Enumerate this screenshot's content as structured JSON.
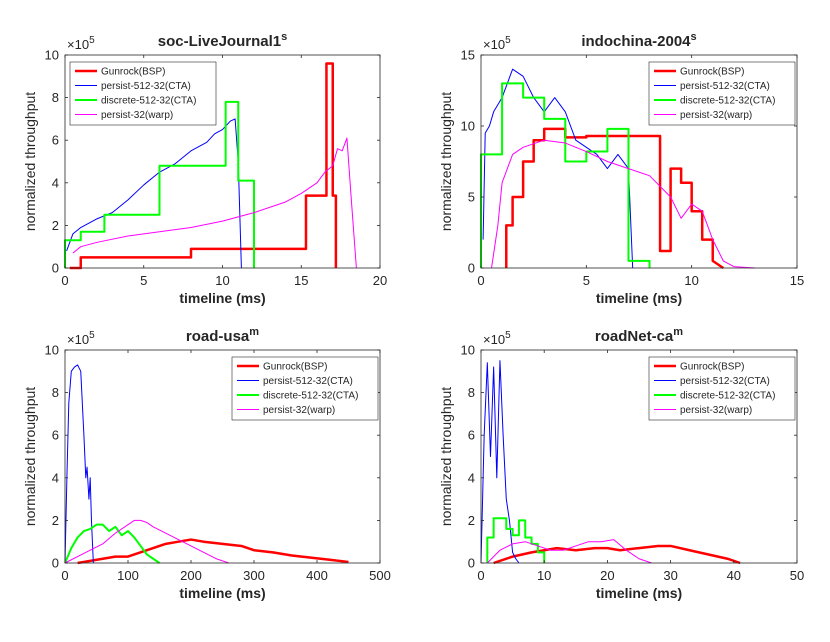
{
  "chart_data": [
    {
      "type": "line",
      "title": "soc-LiveJournal1",
      "title_superscript": "s",
      "y_multiplier": "×10",
      "y_multiplier_exponent": "5",
      "xlabel": "timeline (ms)",
      "ylabel": "normalized throughput",
      "xlim": [
        0,
        20
      ],
      "xticks": [
        0,
        5,
        10,
        15,
        20
      ],
      "ylim": [
        0,
        10
      ],
      "yticks": [
        0,
        2,
        4,
        6,
        8,
        10
      ],
      "legend": "upper left",
      "series": [
        {
          "name": "Gunrock(BSP)",
          "color": "#ff0000",
          "width": 2.5,
          "x": [
            0.3,
            1,
            1,
            8,
            8,
            15.3,
            15.3,
            16.6,
            16.6,
            17.0,
            17.0,
            17.2,
            17.2
          ],
          "values": [
            0,
            0,
            0.5,
            0.5,
            0.9,
            0.9,
            3.4,
            3.4,
            9.6,
            9.6,
            3.4,
            3.4,
            0
          ]
        },
        {
          "name": "persist-512-32(CTA)",
          "color": "#0000ff",
          "width": 1,
          "x": [
            0.1,
            0.5,
            1,
            2,
            3,
            4,
            5,
            6,
            7,
            8,
            9,
            9.5,
            10,
            10.5,
            10.8,
            11,
            11.2
          ],
          "values": [
            0.8,
            1.6,
            1.9,
            2.3,
            2.6,
            3.2,
            3.9,
            4.5,
            4.9,
            5.5,
            5.9,
            6.3,
            6.5,
            6.9,
            7.0,
            5,
            0
          ]
        },
        {
          "name": "discrete-512-32(CTA)",
          "color": "#00ff00",
          "width": 2,
          "x": [
            0,
            0,
            1,
            1,
            2.5,
            2.5,
            6,
            6,
            10.2,
            10.2,
            11,
            11,
            12,
            12
          ],
          "values": [
            0,
            1.3,
            1.3,
            1.7,
            1.7,
            2.5,
            2.5,
            4.8,
            4.8,
            7.8,
            7.8,
            4.1,
            4.1,
            0
          ]
        },
        {
          "name": "persist-32(warp)",
          "color": "#ff00ff",
          "width": 1,
          "x": [
            0.5,
            1,
            2,
            4,
            6,
            8,
            10,
            12,
            14,
            15,
            16,
            16.5,
            17,
            17.3,
            17.6,
            17.9,
            18.2,
            18.5
          ],
          "values": [
            0.7,
            1,
            1.2,
            1.5,
            1.7,
            1.9,
            2.2,
            2.6,
            3.1,
            3.5,
            4.0,
            4.5,
            4.8,
            5.6,
            5.5,
            6.1,
            3,
            0
          ]
        }
      ]
    },
    {
      "type": "line",
      "title": "indochina-2004",
      "title_superscript": "s",
      "y_multiplier": "×10",
      "y_multiplier_exponent": "5",
      "xlabel": "timeline (ms)",
      "ylabel": "normalized throughput",
      "xlim": [
        0,
        15
      ],
      "xticks": [
        0,
        5,
        10,
        15
      ],
      "ylim": [
        0,
        15
      ],
      "yticks": [
        0,
        5,
        10,
        15
      ],
      "legend": "upper right",
      "series": [
        {
          "name": "Gunrock(BSP)",
          "color": "#ff0000",
          "width": 2.5,
          "x": [
            1.2,
            1.2,
            1.5,
            1.5,
            2,
            2,
            2.5,
            2.5,
            3,
            3,
            4,
            4,
            5,
            5,
            8.5,
            8.5,
            9,
            9,
            9.5,
            9.5,
            10,
            10,
            10.5,
            10.5,
            11,
            11,
            11.5
          ],
          "values": [
            0,
            3,
            3,
            5,
            5,
            7.5,
            7.5,
            9,
            9,
            9.8,
            9.8,
            9.2,
            9.2,
            9.3,
            9.3,
            1.2,
            1.2,
            7,
            7,
            6,
            6,
            4,
            4,
            2,
            2,
            0.5,
            0
          ]
        },
        {
          "name": "persist-512-32(CTA)",
          "color": "#0000ff",
          "width": 1,
          "x": [
            0.1,
            0.2,
            0.4,
            0.6,
            1,
            1.5,
            2,
            2.5,
            3,
            3.5,
            4,
            4.5,
            5,
            5.5,
            6,
            6.5,
            7,
            7.2
          ],
          "values": [
            2,
            9.5,
            10,
            11,
            12,
            14,
            13.5,
            12,
            11,
            12,
            11,
            9,
            8.5,
            8,
            7,
            8,
            7,
            0
          ]
        },
        {
          "name": "discrete-512-32(CTA)",
          "color": "#00ff00",
          "width": 2,
          "x": [
            0,
            0,
            1,
            1,
            2,
            2,
            3,
            3,
            4,
            4,
            5,
            5,
            6,
            6,
            7,
            7,
            8,
            8
          ],
          "values": [
            0,
            8,
            8,
            13,
            13,
            12,
            12,
            10.5,
            10.5,
            7.5,
            7.5,
            8.2,
            8.2,
            9.8,
            9.8,
            0.5,
            0.5,
            0
          ]
        },
        {
          "name": "persist-32(warp)",
          "color": "#ff00ff",
          "width": 1,
          "x": [
            0.5,
            0.8,
            1,
            1.5,
            2,
            3,
            4,
            5,
            6,
            7,
            8,
            9,
            9.5,
            10,
            10.5,
            11,
            11.5,
            12,
            13
          ],
          "values": [
            0,
            3,
            6,
            8,
            8.5,
            9,
            8.8,
            8.2,
            7.5,
            7,
            6.5,
            5,
            3.5,
            4.5,
            4,
            2,
            0.5,
            0.1,
            0
          ]
        }
      ]
    },
    {
      "type": "line",
      "title": "road-usa",
      "title_superscript": "m",
      "y_multiplier": "×10",
      "y_multiplier_exponent": "5",
      "xlabel": "timeline (ms)",
      "ylabel": "normalized throughput",
      "xlim": [
        0,
        500
      ],
      "xticks": [
        0,
        100,
        200,
        300,
        400,
        500
      ],
      "ylim": [
        0,
        10
      ],
      "yticks": [
        0,
        2,
        4,
        6,
        8,
        10
      ],
      "legend": "upper right",
      "series": [
        {
          "name": "Gunrock(BSP)",
          "color": "#ff0000",
          "width": 2.5,
          "x": [
            20,
            40,
            60,
            80,
            100,
            120,
            140,
            160,
            180,
            200,
            220,
            250,
            280,
            300,
            330,
            360,
            390,
            420,
            450
          ],
          "values": [
            0,
            0.1,
            0.2,
            0.3,
            0.3,
            0.5,
            0.7,
            0.9,
            1,
            1.1,
            1,
            0.9,
            0.8,
            0.6,
            0.5,
            0.35,
            0.25,
            0.15,
            0.05
          ]
        },
        {
          "name": "persist-512-32(CTA)",
          "color": "#0000ff",
          "width": 1,
          "x": [
            0,
            3,
            6,
            10,
            15,
            20,
            25,
            30,
            33,
            35,
            38,
            40,
            42,
            45
          ],
          "values": [
            0,
            4,
            7.5,
            9,
            9.2,
            9.3,
            9,
            6,
            4,
            4.5,
            3,
            4,
            2,
            0
          ]
        },
        {
          "name": "discrete-512-32(CTA)",
          "color": "#00ff00",
          "width": 2,
          "x": [
            0,
            10,
            20,
            30,
            40,
            50,
            60,
            70,
            80,
            90,
            100,
            110,
            120,
            130,
            140,
            150
          ],
          "values": [
            0,
            0.7,
            1.2,
            1.5,
            1.6,
            1.8,
            1.8,
            1.5,
            1.7,
            1.3,
            1.5,
            1.2,
            0.8,
            0.4,
            0.2,
            0
          ]
        },
        {
          "name": "persist-32(warp)",
          "color": "#ff00ff",
          "width": 1,
          "x": [
            0,
            20,
            40,
            60,
            80,
            100,
            110,
            120,
            130,
            140,
            160,
            180,
            200,
            220,
            240,
            260
          ],
          "values": [
            0,
            0.3,
            0.6,
            0.9,
            1.4,
            1.8,
            2,
            2,
            1.9,
            1.7,
            1.4,
            1.1,
            0.8,
            0.5,
            0.2,
            0
          ]
        }
      ]
    },
    {
      "type": "line",
      "title": "roadNet-ca",
      "title_superscript": "m",
      "y_multiplier": "×10",
      "y_multiplier_exponent": "5",
      "xlabel": "timeline (ms)",
      "ylabel": "normalized throughput",
      "xlim": [
        0,
        50
      ],
      "xticks": [
        0,
        10,
        20,
        30,
        40,
        50
      ],
      "ylim": [
        0,
        10
      ],
      "yticks": [
        0,
        2,
        4,
        6,
        8,
        10
      ],
      "legend": "upper right",
      "series": [
        {
          "name": "Gunrock(BSP)",
          "color": "#ff0000",
          "width": 2.5,
          "x": [
            2,
            5,
            8,
            10,
            12,
            15,
            18,
            20,
            22,
            25,
            28,
            30,
            33,
            36,
            39,
            41
          ],
          "values": [
            0,
            0.3,
            0.5,
            0.6,
            0.7,
            0.6,
            0.7,
            0.7,
            0.6,
            0.7,
            0.8,
            0.8,
            0.6,
            0.4,
            0.2,
            0
          ]
        },
        {
          "name": "persist-512-32(CTA)",
          "color": "#0000ff",
          "width": 1,
          "x": [
            0,
            0.5,
            1,
            1.5,
            2,
            2.5,
            3,
            3.5,
            4,
            4.5,
            5,
            5.5,
            6
          ],
          "values": [
            0,
            6,
            9.4,
            5,
            9.2,
            4,
            9.5,
            6,
            3,
            2,
            0.5,
            0.2,
            0
          ]
        },
        {
          "name": "discrete-512-32(CTA)",
          "color": "#00ff00",
          "width": 2,
          "x": [
            1,
            1,
            2,
            2,
            4,
            4,
            5,
            5,
            6,
            6,
            7,
            7,
            8,
            8,
            9,
            9,
            10,
            10
          ],
          "values": [
            0,
            1.2,
            1.2,
            2.1,
            2.1,
            1.6,
            1.6,
            1.3,
            1.3,
            2,
            2,
            1.2,
            1.2,
            0.9,
            0.9,
            0.5,
            0.5,
            0
          ]
        },
        {
          "name": "persist-32(warp)",
          "color": "#ff00ff",
          "width": 1,
          "x": [
            1,
            3,
            5,
            7,
            9,
            11,
            13,
            15,
            17,
            19,
            21,
            23,
            25,
            27
          ],
          "values": [
            0,
            0.6,
            0.9,
            1,
            0.8,
            0.6,
            0.6,
            0.8,
            1,
            1,
            1.1,
            0.6,
            0.2,
            0
          ]
        }
      ]
    }
  ]
}
